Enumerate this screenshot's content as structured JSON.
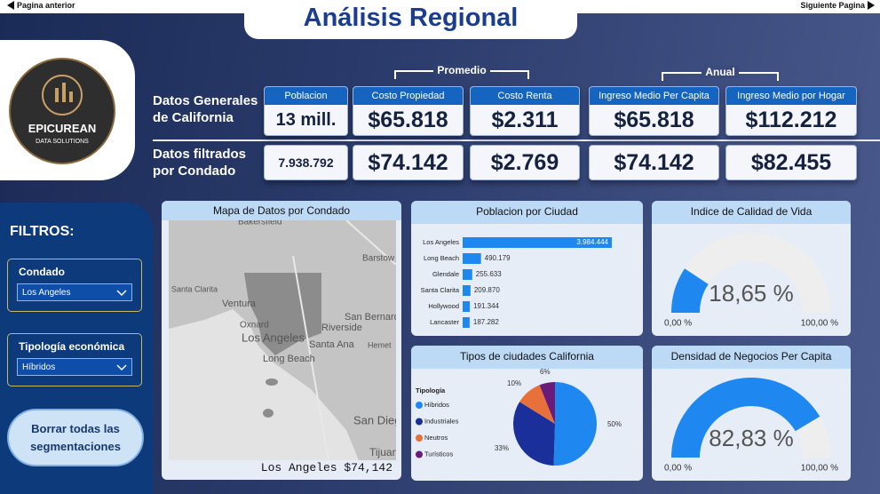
{
  "nav": {
    "prev": "Pagina anterior",
    "next": "Siguiente Pagina"
  },
  "title": "Análisis Regional",
  "logo": {
    "name": "EPICUREAN",
    "tagline": "DATA SOLUTIONS"
  },
  "kpis": {
    "groups": [
      "Promedio",
      "Anual"
    ],
    "rows": [
      "Datos Generales de California",
      "Datos filtrados por Condado"
    ],
    "headers": [
      "Poblacion",
      "Costo Propiedad",
      "Costo Renta",
      "Ingreso Medio Per Capita",
      "Ingreso Medio por Hogar"
    ],
    "general": [
      "13 mill.",
      "$65.818",
      "$2.311",
      "$65.818",
      "$112.212"
    ],
    "filtered": [
      "7.938.792",
      "$74.142",
      "$2.769",
      "$74.142",
      "$82.455"
    ]
  },
  "filters": {
    "title": "FILTROS:",
    "slicers": [
      {
        "label": "Condado",
        "value": "Los Angeles"
      },
      {
        "label": "Tipología económica",
        "value": "Híbridos"
      }
    ],
    "clear_button": "Borrar todas las segmentaciones"
  },
  "map": {
    "title": "Mapa de Datos por Condado",
    "places": [
      "Bakersfield",
      "Barstow",
      "Santa Clarita",
      "Ventura",
      "Oxnard",
      "Los Angeles",
      "Riverside",
      "San Bernardino",
      "Santa Ana",
      "Hemet",
      "Long Beach",
      "San Diego",
      "Tijuana"
    ],
    "caption": "Los Angeles $74,142"
  },
  "chart_data": [
    {
      "type": "bar",
      "title": "Poblacion por Ciudad",
      "categories": [
        "Los Angeles",
        "Long Beach",
        "Glendale",
        "Santa Clarita",
        "Hollywood",
        "Lancaster"
      ],
      "values": [
        3984444,
        490179,
        255633,
        209870,
        191344,
        187282
      ],
      "value_labels": [
        "3.984.444",
        "490.179",
        "255.633",
        "209.870",
        "191.344",
        "187.282"
      ],
      "color": "#1e88f0"
    },
    {
      "type": "gauge",
      "title": "Indice de Calidad de Vida",
      "value": 18.65,
      "value_label": "18,65 %",
      "lim": [
        0,
        100
      ],
      "ticks": [
        {
          "value": 0,
          "label": "0,00 %"
        },
        {
          "value": 100,
          "label": "100,00 %"
        }
      ],
      "color": "#1e88f0",
      "track_color": "#eeeeee"
    },
    {
      "type": "pie",
      "title": "Tipos de ciudades California",
      "legend_title": "Tipología",
      "categories": [
        "Híbridos",
        "Industriales",
        "Neutros",
        "Turísticos"
      ],
      "values": [
        50,
        33,
        10,
        6
      ],
      "value_labels": [
        "50%",
        "33%",
        "10%",
        "6%"
      ],
      "colors": [
        "#1e88f0",
        "#1a2f9a",
        "#e8703a",
        "#6a1b7a"
      ]
    },
    {
      "type": "gauge",
      "title": "Densidad de Negocios Per Capita",
      "value": 82.83,
      "value_label": "82,83 %",
      "lim": [
        0,
        100
      ],
      "ticks": [
        {
          "value": 0,
          "label": "0,00 %"
        },
        {
          "value": 100,
          "label": "100,00 %"
        }
      ],
      "color": "#1e88f0",
      "track_color": "#eeeeee"
    }
  ]
}
